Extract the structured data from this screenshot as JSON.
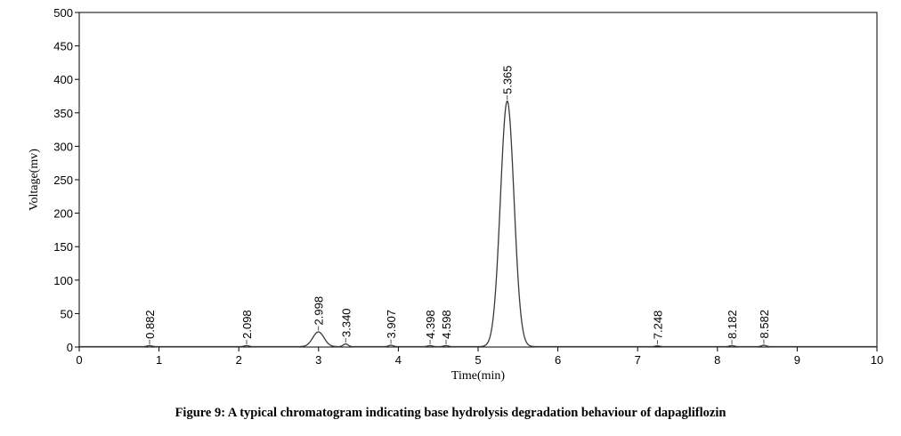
{
  "caption": "Figure 9: A typical chromatogram indicating base hydrolysis degradation behaviour of dapagliflozin",
  "chart_data": {
    "type": "line",
    "title": "",
    "xlabel": "Time(min)",
    "ylabel": "Voltage(mv)",
    "xlim": [
      0,
      10
    ],
    "ylim": [
      0,
      500
    ],
    "xticks": [
      0,
      1,
      2,
      3,
      4,
      5,
      6,
      7,
      8,
      9,
      10
    ],
    "yticks": [
      0,
      50,
      100,
      150,
      200,
      250,
      300,
      350,
      400,
      450,
      500
    ],
    "grid": false,
    "line_color": "#3a3a3a",
    "peaks": [
      {
        "label": "0.882",
        "rt": 0.882,
        "height": 1.5
      },
      {
        "label": "2.098",
        "rt": 2.098,
        "height": 1.5
      },
      {
        "label": "2.998",
        "rt": 2.998,
        "height": 22
      },
      {
        "label": "3.340",
        "rt": 3.34,
        "height": 4
      },
      {
        "label": "3.907",
        "rt": 3.907,
        "height": 2
      },
      {
        "label": "4.398",
        "rt": 4.398,
        "height": 1.5
      },
      {
        "label": "4.598",
        "rt": 4.598,
        "height": 1.5
      },
      {
        "label": "5.365",
        "rt": 5.365,
        "height": 367
      },
      {
        "label": "7.248",
        "rt": 7.248,
        "height": 1
      },
      {
        "label": "8.182",
        "rt": 8.182,
        "height": 1.5
      },
      {
        "label": "8.582",
        "rt": 8.582,
        "height": 2
      }
    ]
  }
}
